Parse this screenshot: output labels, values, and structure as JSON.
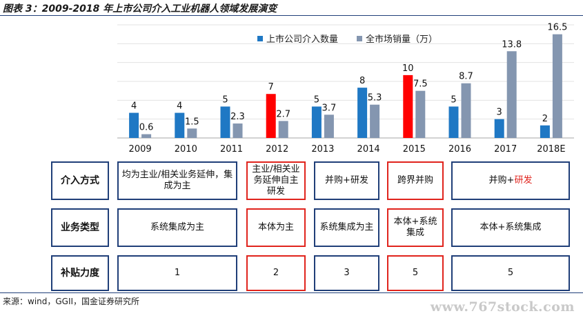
{
  "figure_title": "图表 3：2009-2018 年上市公司介入工业机器人领域发展演变",
  "chart_data": {
    "type": "bar",
    "categories": [
      "2009",
      "2010",
      "2011",
      "2012",
      "2013",
      "2014",
      "2015",
      "2016",
      "2017",
      "2018E"
    ],
    "series": [
      {
        "name": "上市公司介入数量",
        "values": [
          4,
          4,
          5,
          7,
          5,
          8,
          10,
          5,
          3,
          2
        ],
        "color": "#1f78c4",
        "highlight_color": "#ff0000",
        "highlight_indices": [
          3,
          6
        ]
      },
      {
        "name": "全市场销量（万）",
        "values": [
          0.6,
          1.5,
          2.3,
          2.7,
          3.7,
          5.3,
          7.5,
          8.7,
          13.8,
          16.5
        ],
        "color": "#8496b0"
      }
    ],
    "data_labels": {
      "s0": [
        "4",
        "4",
        "5",
        "7",
        "5",
        "8",
        "10",
        "5",
        "3",
        "2"
      ],
      "s1": [
        "0.6",
        "1.5",
        "2.3",
        "2.7",
        "3.7",
        "5.3",
        "7.5",
        "8.7",
        "13.8",
        "16.5"
      ]
    },
    "ylim": [
      0,
      18
    ],
    "grid": true,
    "legend": "top-center",
    "title": "",
    "xlabel": "",
    "ylabel": ""
  },
  "table": {
    "row1": {
      "header": "介入方式",
      "cells": [
        {
          "text": "均为主业/相关业务延伸，集成为主",
          "highlight": false
        },
        {
          "text": "主业/相关业务延伸自主研发",
          "highlight": true
        },
        {
          "text": "并购+研发",
          "highlight": false
        },
        {
          "text": "跨界并购",
          "highlight": true
        },
        {
          "text_a": "并购+",
          "text_b": "研发",
          "highlight": false
        }
      ]
    },
    "row2": {
      "header": "业务类型",
      "cells": [
        {
          "text": "系统集成为主",
          "highlight": false
        },
        {
          "text": "本体为主",
          "highlight": true
        },
        {
          "text": "系统集成为主",
          "highlight": false
        },
        {
          "text": "本体+系统集成",
          "highlight": true
        },
        {
          "text": "本体+系统集成",
          "highlight": false
        }
      ]
    },
    "row3": {
      "header": "补贴力度",
      "cells": [
        {
          "text": "1",
          "highlight": false
        },
        {
          "text": "2",
          "highlight": true
        },
        {
          "text": "3",
          "highlight": false
        },
        {
          "text": "5",
          "highlight": true
        },
        {
          "text": "5",
          "highlight": false
        }
      ]
    }
  },
  "source": "来源：wind，GGII，国金证券研究所",
  "watermark": "www.767stock.com"
}
